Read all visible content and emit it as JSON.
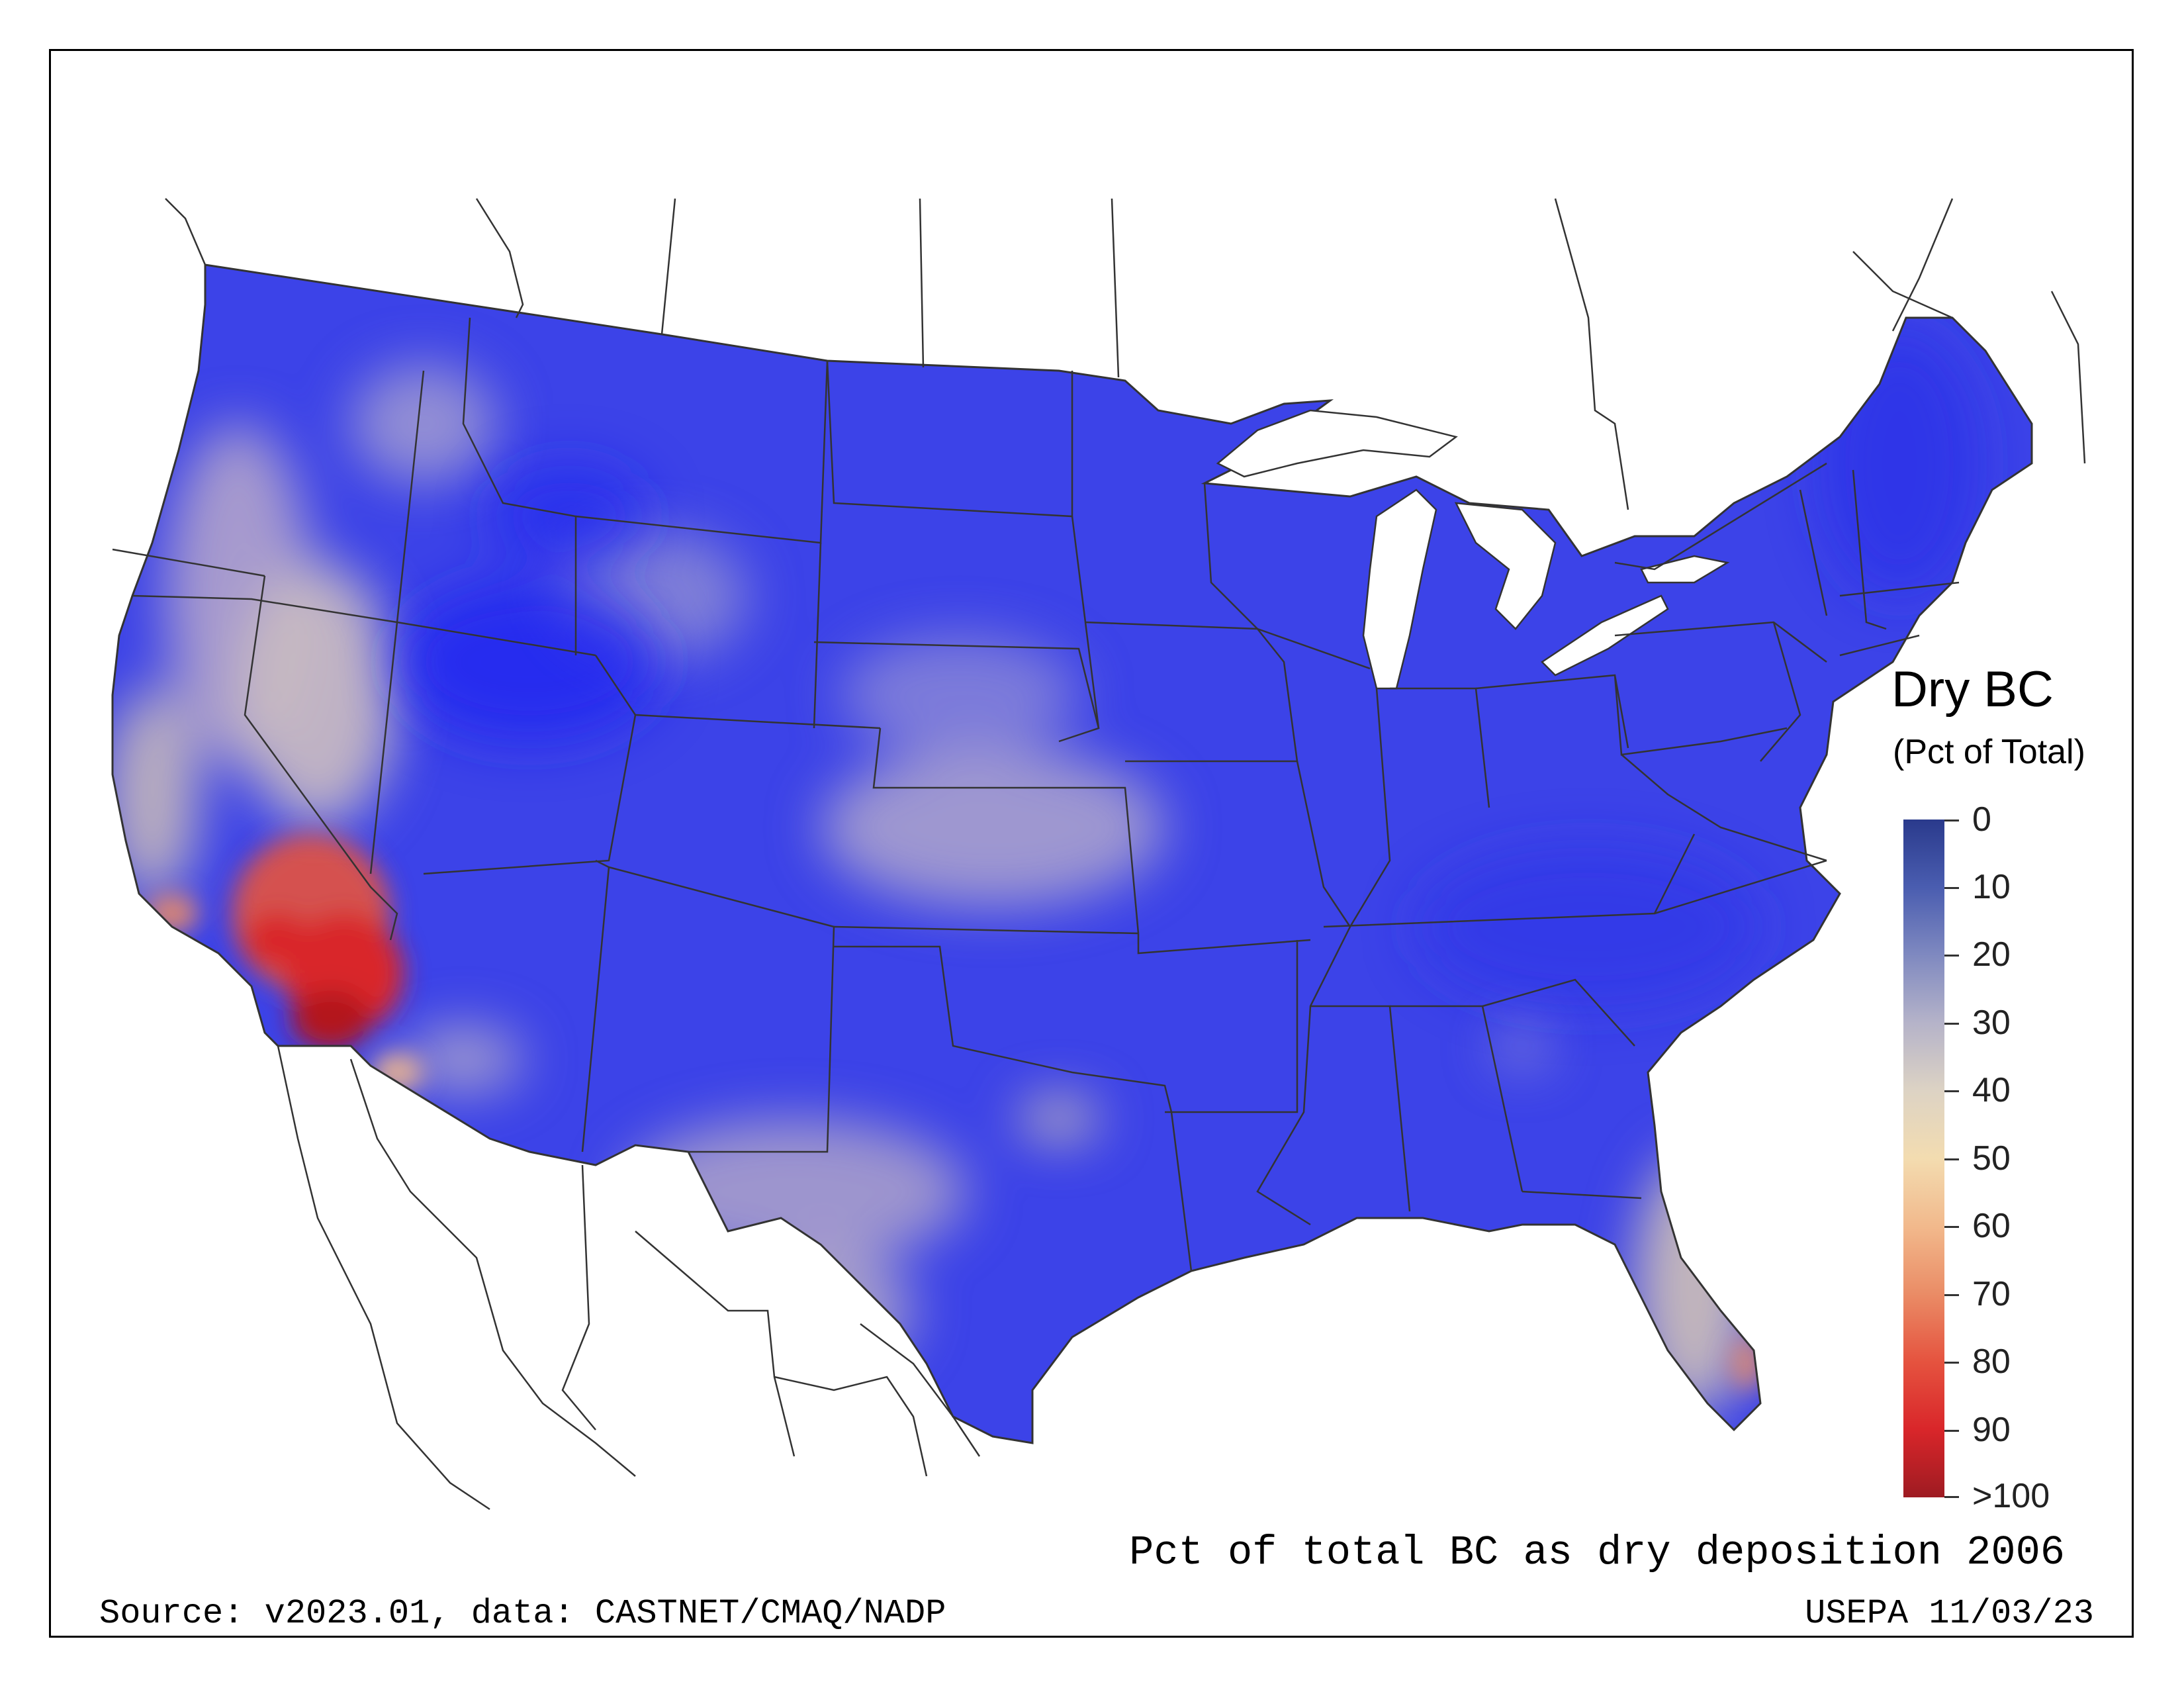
{
  "legend": {
    "title": "Dry BC",
    "unit": "(Pct of Total)",
    "ticks": [
      "0",
      "10",
      "20",
      "30",
      "40",
      "50",
      "60",
      "70",
      "80",
      "90",
      ">100"
    ],
    "colors": [
      "#2a3a8c",
      "#4a5db0",
      "#7f89c0",
      "#b5b3c9",
      "#ddd3c4",
      "#f3dcb0",
      "#f2b98c",
      "#ea8c66",
      "#e5533f",
      "#d9262a",
      "#9e1b22"
    ]
  },
  "map": {
    "caption": "Pct of total BC as dry deposition 2006",
    "source": "Source: v2023.01, data: CASTNET/CMAQ/NADP",
    "agency": "USEPA 11/03/23",
    "colors": {
      "dominant": "#3c43e8",
      "deep": "#1f26f0",
      "mid": "#7d7fd6",
      "pale": "#d9c9b4",
      "hot": "#e83a2d",
      "hottest": "#b3141e"
    }
  }
}
